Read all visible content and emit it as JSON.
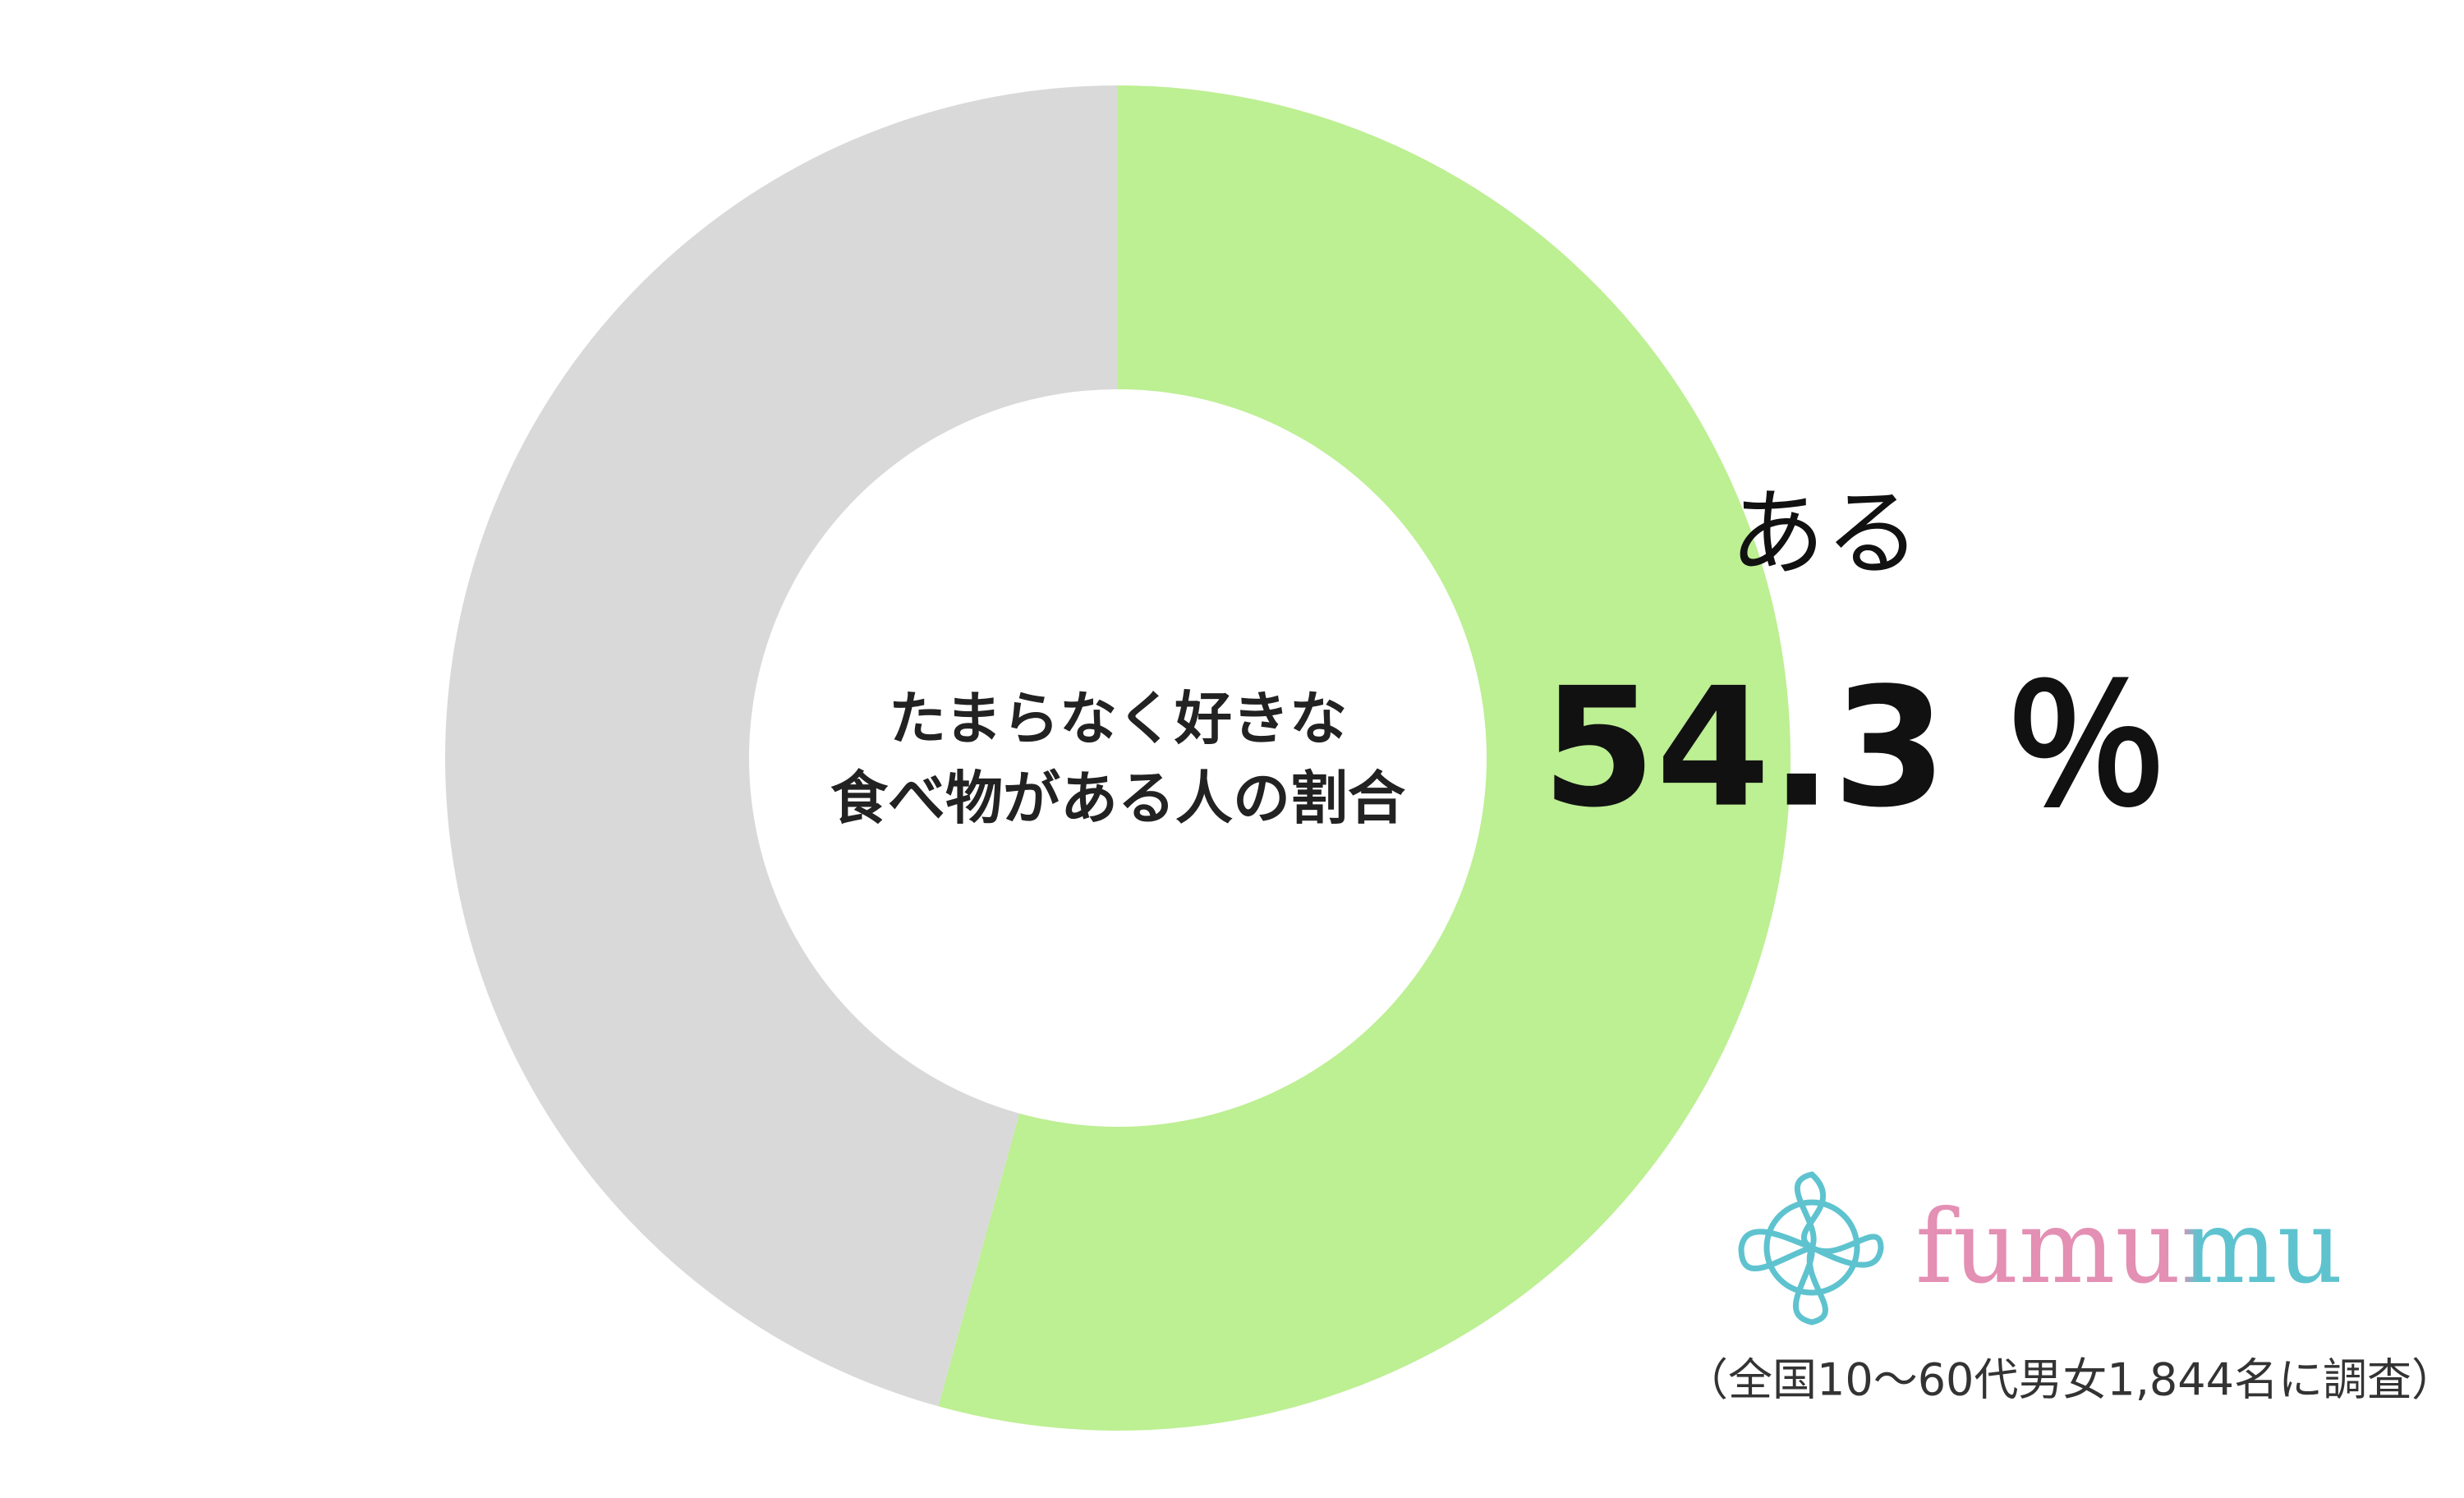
{
  "chart_data": {
    "type": "pie",
    "donut": true,
    "title": [
      "たまらなく好きな",
      "食べ物がある人の割合"
    ],
    "categories": [
      "ある",
      null
    ],
    "values": [
      54.3,
      45.7
    ],
    "value_labels": [
      "54.3 ％",
      null
    ],
    "colors": [
      "#bdef93",
      "#d9d9d9"
    ],
    "brand": "fumumu",
    "note": "（全国10～60代男女1,844名に調査）"
  }
}
